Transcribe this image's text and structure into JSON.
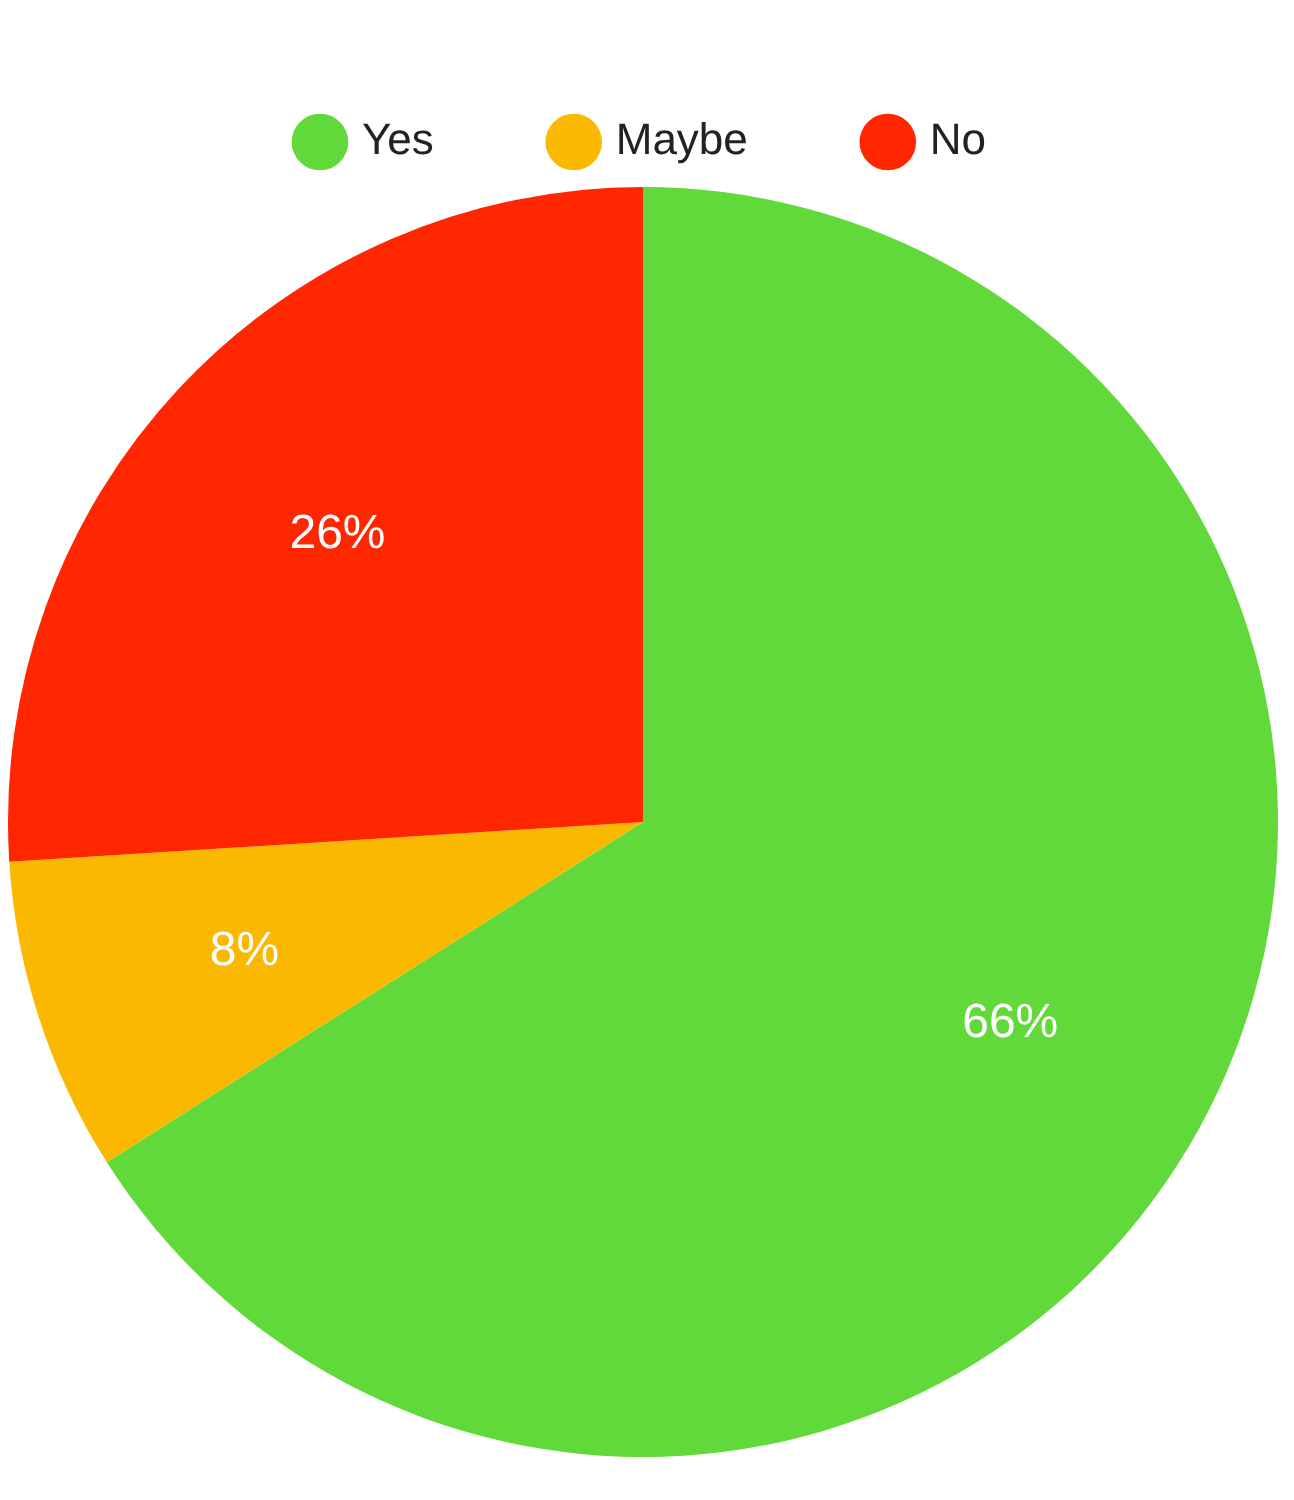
{
  "chart_data": {
    "type": "pie",
    "categories": [
      "Yes",
      "Maybe",
      "No"
    ],
    "values": [
      66,
      8,
      26
    ],
    "colors": [
      "#62d93a",
      "#fbb800",
      "#ff2600"
    ],
    "value_labels": [
      "66%",
      "8%",
      "26%"
    ],
    "legend": "top"
  }
}
